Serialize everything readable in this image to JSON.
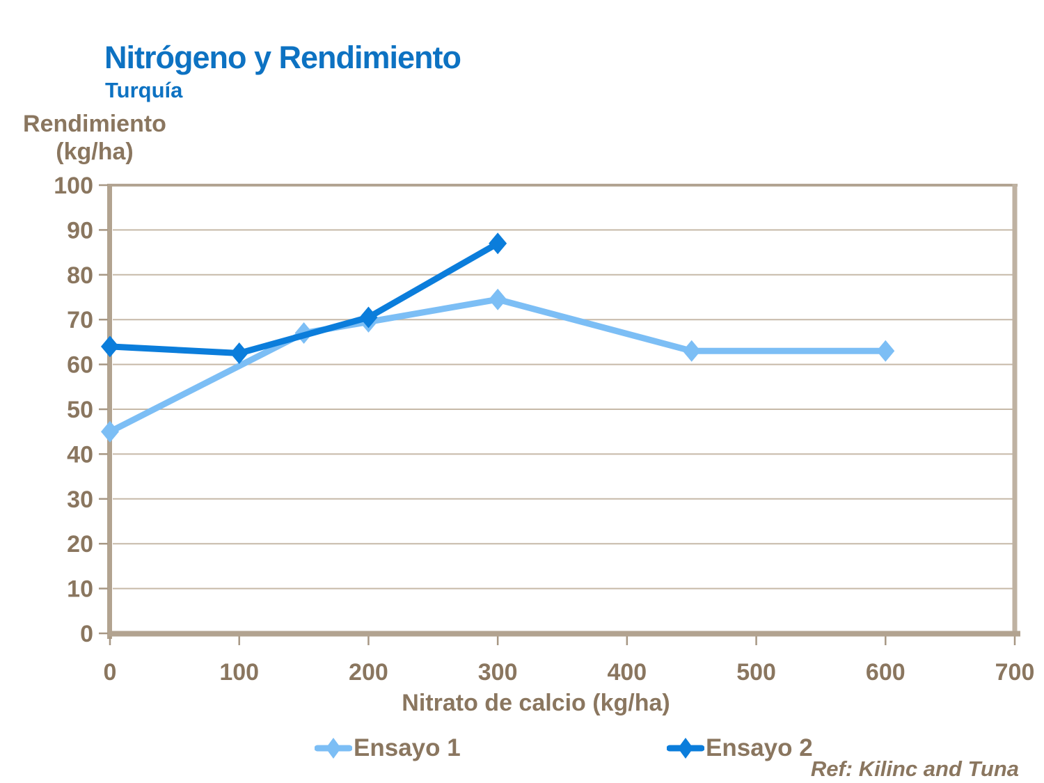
{
  "title": "Nitrógeno y Rendimiento",
  "subtitle": "Turquía",
  "y_axis_title": {
    "line1": "Rendimiento",
    "line2": "(kg/ha)"
  },
  "reference": "Ref: Kilinc and Tuna",
  "colors": {
    "title_blue": "#0d72c2",
    "text_brown": "#8a765f",
    "gridline": "#c6b9a8",
    "axis_bar": "#b2a390",
    "tick": "#a79784",
    "series1_blue": "#7cbef5",
    "series2_blue": "#0b7ddb",
    "background": "#ffffff"
  },
  "chart_data": {
    "type": "line",
    "title": "Nitrógeno y Rendimiento — Turquía",
    "xlabel": "Nitrato de calcio (kg/ha)",
    "ylabel": "Rendimiento (kg/ha)",
    "xlim": [
      0,
      700
    ],
    "ylim": [
      0,
      100
    ],
    "x_ticks": [
      0,
      100,
      200,
      300,
      400,
      500,
      600,
      700
    ],
    "y_ticks": [
      0,
      10,
      20,
      30,
      40,
      50,
      60,
      70,
      80,
      90,
      100
    ],
    "grid": "horizontal-only",
    "legend_position": "bottom",
    "marker": "diamond",
    "series": [
      {
        "name": "Ensayo 1",
        "color": "#7cbef5",
        "x": [
          0,
          150,
          200,
          300,
          450,
          600
        ],
        "y": [
          45,
          67,
          69.5,
          74.5,
          63,
          63
        ]
      },
      {
        "name": "Ensayo 2",
        "color": "#0b7ddb",
        "x": [
          0,
          100,
          200,
          300
        ],
        "y": [
          64,
          62.5,
          70.5,
          87
        ]
      }
    ]
  }
}
